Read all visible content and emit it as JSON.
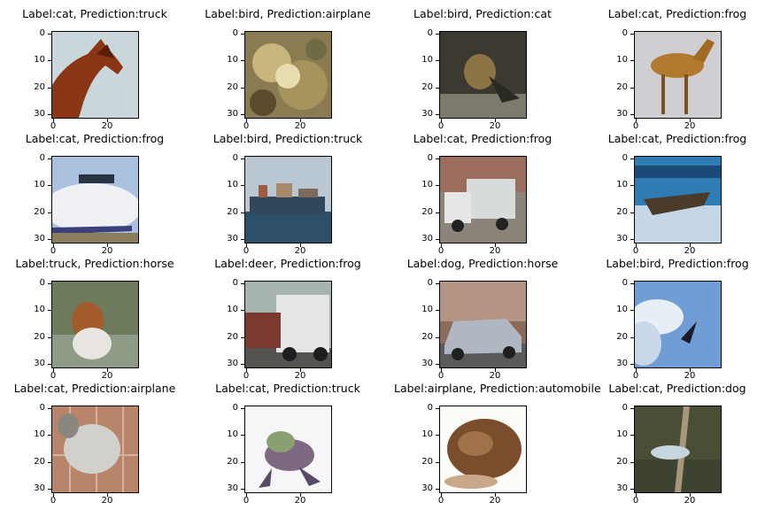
{
  "panels": [
    {
      "title": "Label:cat, Prediction:truck",
      "scene": "horse"
    },
    {
      "title": "Label:bird, Prediction:airplane",
      "scene": "frog-closeup"
    },
    {
      "title": "Label:bird, Prediction:cat",
      "scene": "bird-dark"
    },
    {
      "title": "Label:cat, Prediction:frog",
      "scene": "deer"
    },
    {
      "title": "Label:cat, Prediction:frog",
      "scene": "airplane"
    },
    {
      "title": "Label:bird, Prediction:truck",
      "scene": "ship"
    },
    {
      "title": "Label:cat, Prediction:frog",
      "scene": "truck-street"
    },
    {
      "title": "Label:cat, Prediction:frog",
      "scene": "plane-sky-blue"
    },
    {
      "title": "Label:truck, Prediction:horse",
      "scene": "dog-grass"
    },
    {
      "title": "Label:deer, Prediction:frog",
      "scene": "truck-white"
    },
    {
      "title": "Label:dog, Prediction:horse",
      "scene": "car-street"
    },
    {
      "title": "Label:bird, Prediction:frog",
      "scene": "bird-sky"
    },
    {
      "title": "Label:cat, Prediction:airplane",
      "scene": "cat-plaid"
    },
    {
      "title": "Label:cat, Prediction:truck",
      "scene": "frog-white"
    },
    {
      "title": "Label:airplane, Prediction:automobile",
      "scene": "frog-brown"
    },
    {
      "title": "Label:cat, Prediction:dog",
      "scene": "bird-branch"
    }
  ],
  "axes": {
    "y_ticks": [
      "0",
      "10",
      "20",
      "30"
    ],
    "x_ticks": [
      "0",
      "20"
    ]
  }
}
